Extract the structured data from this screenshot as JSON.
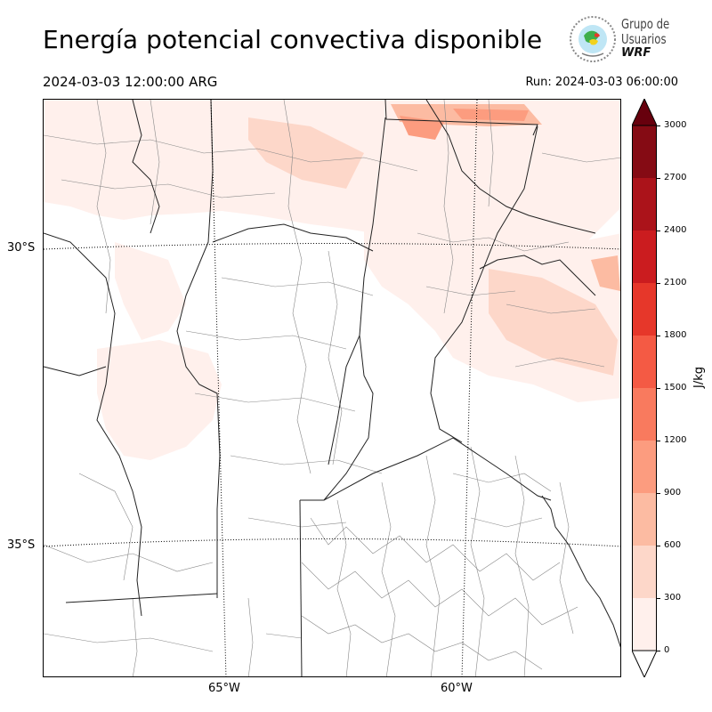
{
  "header": {
    "title": "Energía potencial convectiva disponible",
    "valid_time": "2024-03-03 12:00:00 ARG",
    "run_time": "Run: 2024-03-03 06:00:00"
  },
  "logo": {
    "line1": "Grupo de",
    "line2": "Usuarios",
    "line3": "WRF"
  },
  "map": {
    "lat_labels": [
      "30°S",
      "35°S"
    ],
    "lon_labels": [
      "65°W",
      "60°W"
    ]
  },
  "colorbar": {
    "unit": "J/kg",
    "ticks": [
      "0",
      "300",
      "600",
      "900",
      "1200",
      "1500",
      "1800",
      "2100",
      "2400",
      "2700",
      "3000"
    ],
    "colors": [
      "#fff0ec",
      "#fdd7c9",
      "#fcbba2",
      "#fc9c7f",
      "#f97a5e",
      "#f45a44",
      "#e6372a",
      "#cb1c1f",
      "#ab131a",
      "#850b14"
    ],
    "extend_color": "#67000d"
  }
}
